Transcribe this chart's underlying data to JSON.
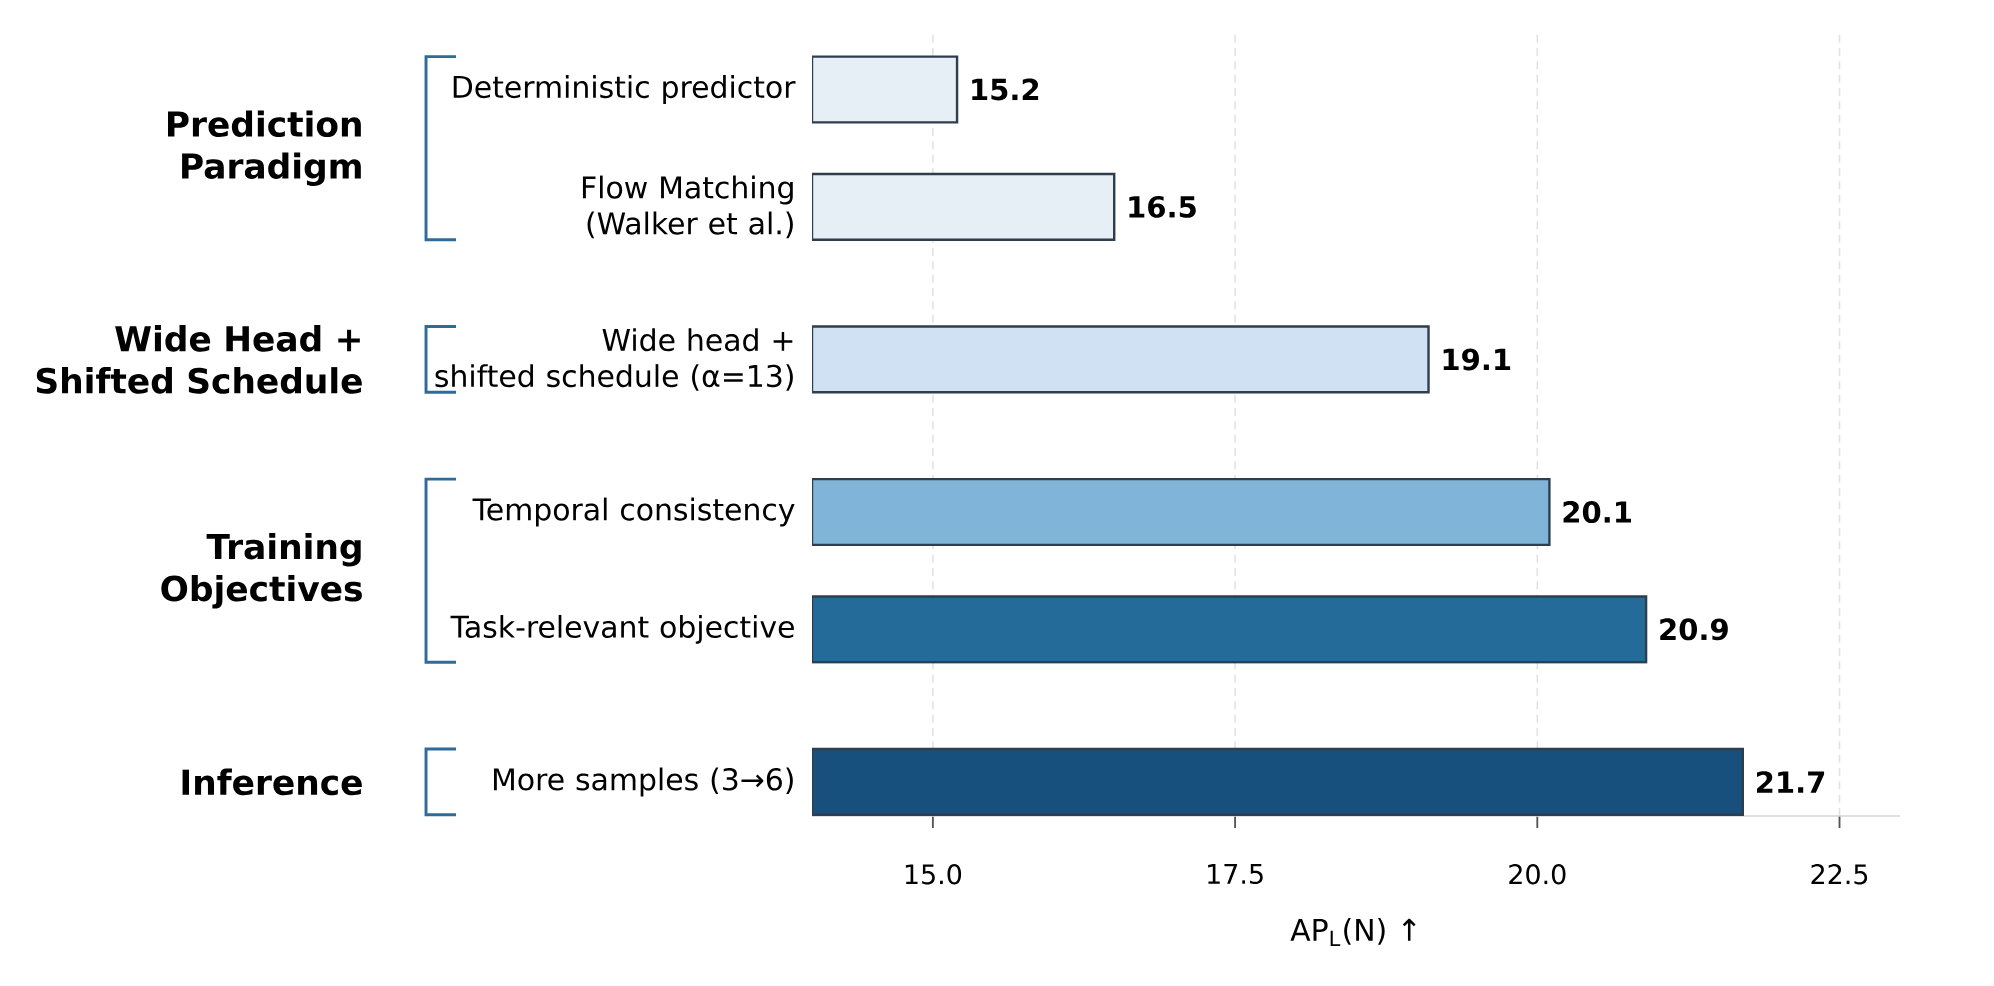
{
  "chart_data": {
    "type": "bar",
    "orientation": "horizontal",
    "categories": [
      "Deterministic predictor",
      "Flow Matching\n(Walker et al.)",
      "Wide head +\nshifted schedule (α=13)",
      "Temporal consistency",
      "Task-relevant objective",
      "More samples (3→6)"
    ],
    "values": [
      15.2,
      16.5,
      19.1,
      20.1,
      20.9,
      21.7
    ],
    "colors": [
      "#e6eef6",
      "#e6eef6",
      "#cfe1f2",
      "#80b5d9",
      "#256b99",
      "#17507c"
    ],
    "data_labels": true,
    "xlim": [
      14,
      23
    ],
    "xticks": [
      {
        "value": 15,
        "label": "15.0"
      },
      {
        "value": 17.5,
        "label": "17.5"
      },
      {
        "value": 20,
        "label": "20.0"
      },
      {
        "value": 22.5,
        "label": "22.5"
      }
    ],
    "xlabel": "AP$_{L}$(N) ↑",
    "grid": "x",
    "annotations": [
      "Prediction\nParadigm",
      "Wide Head +\nShifted Schedule",
      "Training\nObjectives",
      "Inference"
    ]
  }
}
